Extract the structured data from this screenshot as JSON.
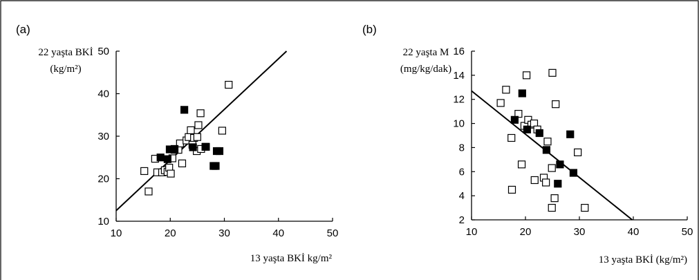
{
  "chart_data": [
    {
      "type": "scatter",
      "panel_label": "(a)",
      "ylabel_line1": "22 yaşta BKİ",
      "ylabel_line2": "(kg/m²)",
      "xlabel": "13 yaşta BKİ kg/m²",
      "xlim": [
        10,
        50
      ],
      "ylim": [
        10,
        50
      ],
      "xticks": [
        "10",
        "20",
        "30",
        "40",
        "50"
      ],
      "yticks": [
        "10",
        "20",
        "30",
        "40",
        "50"
      ],
      "fit_line": {
        "x": [
          10,
          41.5
        ],
        "y": [
          12.5,
          50
        ]
      },
      "series": [
        {
          "marker": "open-square",
          "points": [
            [
              15.2,
              21.8
            ],
            [
              16.0,
              17.0
            ],
            [
              17.2,
              24.7
            ],
            [
              17.6,
              21.5
            ],
            [
              18.5,
              21.5
            ],
            [
              19.0,
              22.0
            ],
            [
              19.5,
              21.6
            ],
            [
              19.8,
              22.6
            ],
            [
              20.1,
              21.2
            ],
            [
              20.4,
              24.8
            ],
            [
              20.8,
              26.8
            ],
            [
              21.5,
              26.8
            ],
            [
              21.8,
              28.3
            ],
            [
              22.2,
              23.6
            ],
            [
              23.0,
              29.0
            ],
            [
              23.4,
              29.8
            ],
            [
              23.8,
              31.4
            ],
            [
              24.1,
              28.0
            ],
            [
              24.4,
              29.6
            ],
            [
              24.9,
              26.5
            ],
            [
              25.0,
              29.8
            ],
            [
              25.2,
              32.6
            ],
            [
              25.6,
              35.4
            ],
            [
              25.7,
              27.0
            ],
            [
              26.5,
              27.5
            ],
            [
              29.6,
              31.3
            ],
            [
              30.8,
              42.1
            ]
          ]
        },
        {
          "marker": "filled-square",
          "points": [
            [
              18.2,
              25.0
            ],
            [
              19.5,
              24.6
            ],
            [
              19.9,
              26.9
            ],
            [
              20.8,
              27.0
            ],
            [
              22.6,
              36.2
            ],
            [
              24.2,
              27.4
            ],
            [
              26.6,
              27.5
            ],
            [
              28.0,
              23.0
            ],
            [
              28.4,
              23.0
            ],
            [
              28.6,
              26.5
            ],
            [
              29.1,
              26.5
            ]
          ]
        }
      ]
    },
    {
      "type": "scatter",
      "panel_label": "(b)",
      "ylabel_line1": "22 yaşta M",
      "ylabel_line2": "(mg/kg/dak)",
      "xlabel": "13 yaşta BKİ (kg/m²)",
      "xlim": [
        10,
        50
      ],
      "ylim": [
        2,
        16
      ],
      "xticks": [
        "10",
        "20",
        "30",
        "40",
        "50"
      ],
      "yticks": [
        "2",
        "4",
        "6",
        "8",
        "10",
        "12",
        "14",
        "16"
      ],
      "fit_line": {
        "x": [
          10,
          39.8
        ],
        "y": [
          12.7,
          2.0
        ]
      },
      "series": [
        {
          "marker": "open-square",
          "points": [
            [
              15.4,
              11.7
            ],
            [
              16.4,
              12.8
            ],
            [
              17.4,
              8.8
            ],
            [
              17.5,
              4.5
            ],
            [
              18.7,
              10.8
            ],
            [
              19.3,
              6.6
            ],
            [
              19.8,
              9.8
            ],
            [
              20.2,
              14.0
            ],
            [
              20.5,
              10.3
            ],
            [
              21.1,
              9.9
            ],
            [
              21.6,
              10.0
            ],
            [
              22.2,
              9.5
            ],
            [
              21.7,
              5.3
            ],
            [
              23.4,
              5.5
            ],
            [
              23.8,
              5.1
            ],
            [
              24.1,
              8.5
            ],
            [
              24.9,
              6.3
            ],
            [
              25.0,
              14.2
            ],
            [
              24.9,
              3.0
            ],
            [
              25.4,
              3.8
            ],
            [
              25.6,
              11.6
            ],
            [
              29.7,
              7.6
            ],
            [
              31.0,
              3.0
            ]
          ]
        },
        {
          "marker": "filled-square",
          "points": [
            [
              18.0,
              10.3
            ],
            [
              19.4,
              12.5
            ],
            [
              20.3,
              9.5
            ],
            [
              22.6,
              9.2
            ],
            [
              23.9,
              7.8
            ],
            [
              26.0,
              5.0
            ],
            [
              26.4,
              6.6
            ],
            [
              28.3,
              9.1
            ],
            [
              28.9,
              5.9
            ]
          ]
        }
      ]
    }
  ]
}
